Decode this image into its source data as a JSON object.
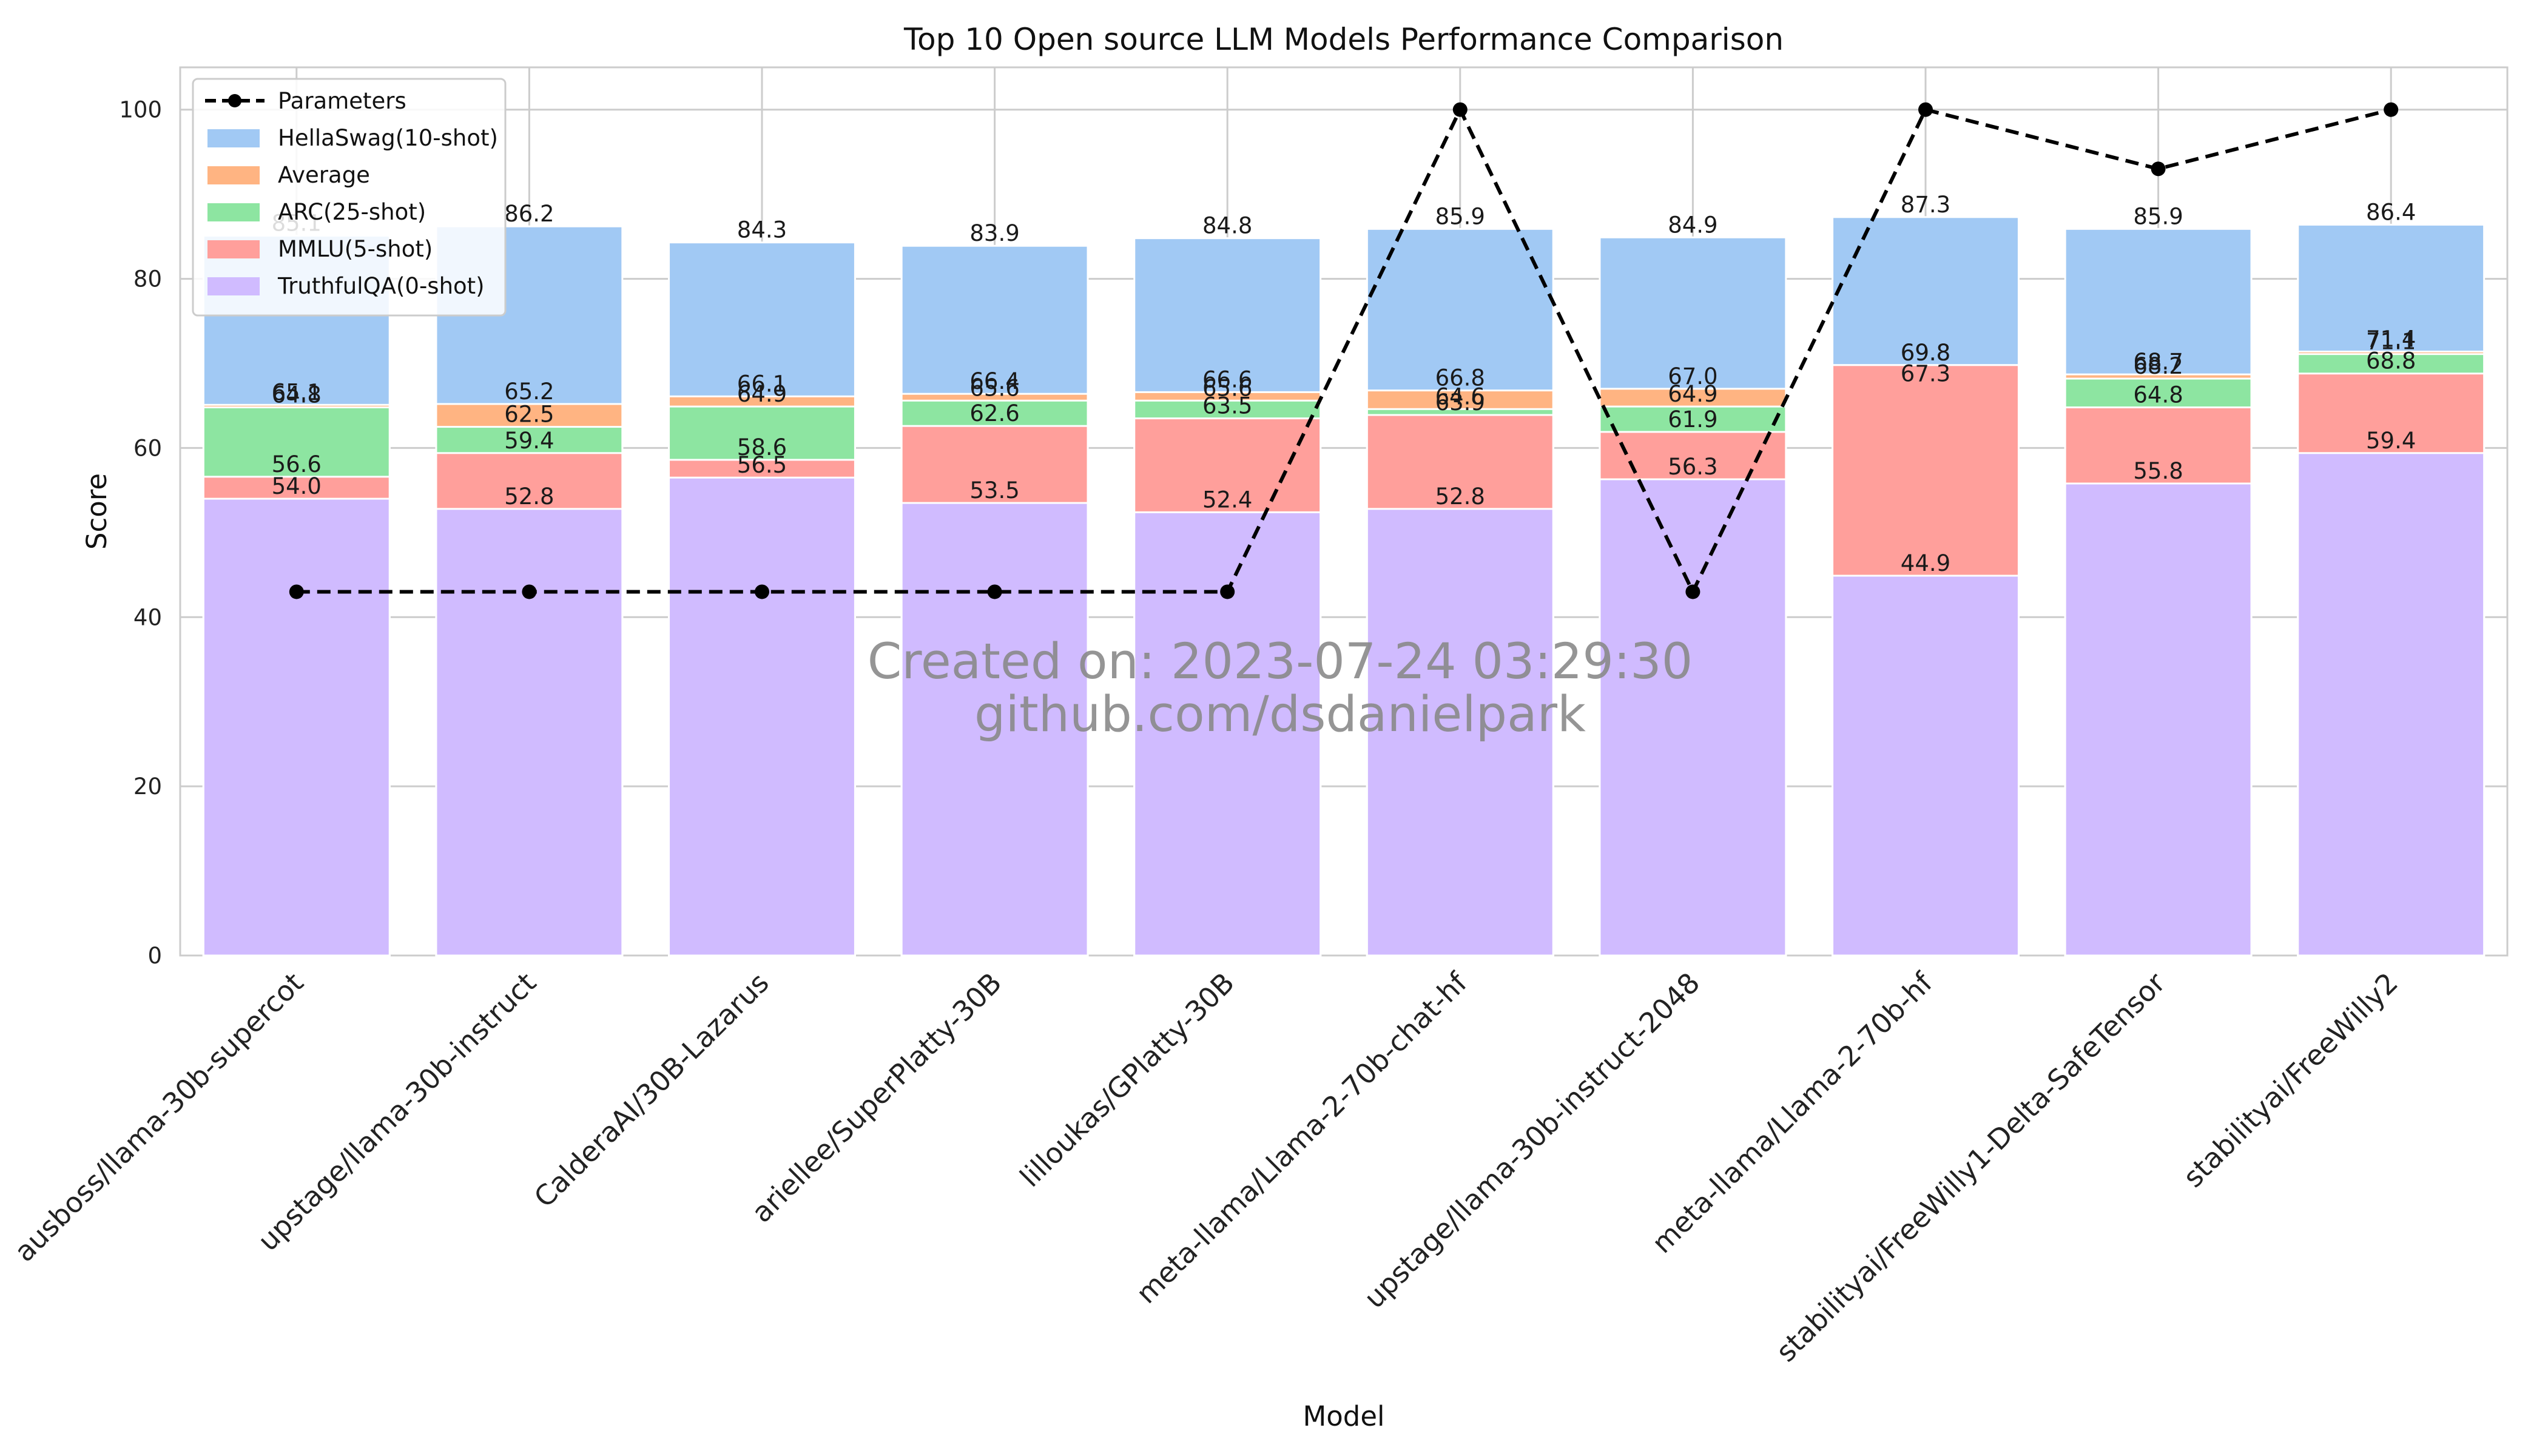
{
  "chart_data": {
    "type": "bar",
    "title": "Top 10 Open source LLM Models Performance Comparison",
    "xlabel": "Model",
    "ylabel": "Score",
    "ylim": [
      0,
      105
    ],
    "yticks": [
      0,
      20,
      40,
      60,
      80,
      100
    ],
    "grid": true,
    "legend_position": "top-left",
    "categories": [
      "ausboss/llama-30b-supercot",
      "upstage/llama-30b-instruct",
      "CalderaAI/30B-Lazarus",
      "ariellee/SuperPlatty-30B",
      "lilloukas/GPlatty-30B",
      "meta-llama/Llama-2-70b-chat-hf",
      "upstage/llama-30b-instruct-2048",
      "meta-llama/Llama-2-70b-hf",
      "stabilityai/FreeWilly1-Delta-SafeTensor",
      "stabilityai/FreeWilly2"
    ],
    "series": [
      {
        "name": "Parameters",
        "kind": "line",
        "color": "#000000",
        "values": [
          43,
          43,
          43,
          43,
          43,
          100,
          43,
          100,
          93,
          100
        ]
      },
      {
        "name": "HellaSwag(10-shot)",
        "kind": "bar",
        "color": "#a1c9f4",
        "values": [
          85.1,
          86.2,
          84.3,
          83.9,
          84.8,
          85.9,
          84.9,
          87.3,
          85.9,
          86.4
        ]
      },
      {
        "name": "Average",
        "kind": "bar",
        "color": "#ffb482",
        "values": [
          65.1,
          65.2,
          66.1,
          66.4,
          66.6,
          66.8,
          67.0,
          69.8,
          68.7,
          71.4
        ]
      },
      {
        "name": "ARC(25-shot)",
        "kind": "bar",
        "color": "#8de5a1",
        "values": [
          64.8,
          62.5,
          64.9,
          65.6,
          65.6,
          64.6,
          64.9,
          67.3,
          68.2,
          71.1
        ]
      },
      {
        "name": "MMLU(5-shot)",
        "kind": "bar",
        "color": "#ff9f9b",
        "values": [
          56.6,
          59.4,
          58.6,
          62.6,
          63.5,
          63.9,
          61.9,
          69.8,
          64.8,
          68.8
        ]
      },
      {
        "name": "TruthfulQA(0-shot)",
        "kind": "bar",
        "color": "#d0bbff",
        "values": [
          54.0,
          52.8,
          56.5,
          53.5,
          52.4,
          52.8,
          56.3,
          44.9,
          55.8,
          59.4
        ]
      }
    ],
    "bar_draw_order": [
      "HellaSwag(10-shot)",
      "Average",
      "ARC(25-shot)",
      "MMLU(5-shot)",
      "TruthfulQA(0-shot)"
    ],
    "data_labels": [
      {
        "category": 0,
        "values": [
          "85.1",
          "65.1",
          "64.8",
          "56.6",
          "54.0"
        ]
      },
      {
        "category": 1,
        "values": [
          "86.2",
          "65.2",
          "62.5",
          "59.4",
          "52.8"
        ]
      },
      {
        "category": 2,
        "values": [
          "84.3",
          "66.1",
          "64.9",
          "58.6",
          "56.5"
        ]
      },
      {
        "category": 3,
        "values": [
          "83.9",
          "66.4",
          "65.6",
          "62.6",
          "53.5"
        ]
      },
      {
        "category": 4,
        "values": [
          "84.8",
          "66.6",
          "65.6",
          "63.5",
          "52.4"
        ]
      },
      {
        "category": 5,
        "values": [
          "85.9",
          "66.8",
          "64.6",
          "63.9",
          "52.8"
        ]
      },
      {
        "category": 6,
        "values": [
          "84.9",
          "67.0",
          "64.9",
          "61.9",
          "56.3"
        ]
      },
      {
        "category": 7,
        "values": [
          "87.3",
          "69.8",
          "67.3",
          "69.8",
          "44.9"
        ]
      },
      {
        "category": 8,
        "values": [
          "85.9",
          "68.7",
          "68.2",
          "64.8",
          "55.8"
        ]
      },
      {
        "category": 9,
        "values": [
          "86.4",
          "71.4",
          "71.1",
          "68.8",
          "59.4"
        ]
      }
    ]
  },
  "watermark": {
    "line1": "Created on: 2023-07-24 03:29:30",
    "line2": "github.com/dsdanielpark"
  }
}
